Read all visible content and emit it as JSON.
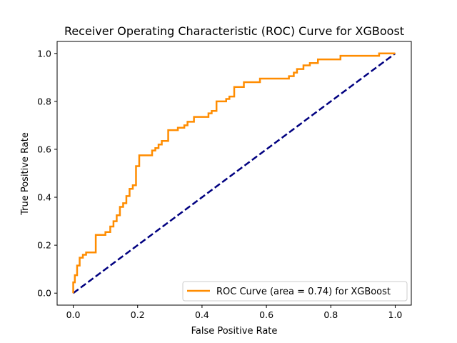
{
  "chart_data": {
    "type": "line",
    "title": "Receiver Operating Characteristic (ROC) Curve for XGBoost",
    "xlabel": "False Positive Rate",
    "ylabel": "True Positive Rate",
    "xlim": [
      -0.05,
      1.05
    ],
    "ylim": [
      -0.05,
      1.05
    ],
    "x_ticks": [
      0.0,
      0.2,
      0.4,
      0.6,
      0.8,
      1.0
    ],
    "y_ticks": [
      0.0,
      0.2,
      0.4,
      0.6,
      0.8,
      1.0
    ],
    "x_tick_labels": [
      "0.0",
      "0.2",
      "0.4",
      "0.6",
      "0.8",
      "1.0"
    ],
    "y_tick_labels": [
      "0.0",
      "0.2",
      "0.4",
      "0.6",
      "0.8",
      "1.0"
    ],
    "grid": false,
    "legend_position": "lower right",
    "series": [
      {
        "name": "ROC Curve (area = 0.74) for XGBoost",
        "color": "#ff8c00",
        "style": "solid",
        "x": [
          0.0,
          0.0,
          0.005,
          0.005,
          0.012,
          0.012,
          0.02,
          0.02,
          0.03,
          0.03,
          0.04,
          0.04,
          0.07,
          0.07,
          0.1,
          0.1,
          0.115,
          0.115,
          0.125,
          0.125,
          0.135,
          0.135,
          0.145,
          0.145,
          0.155,
          0.155,
          0.165,
          0.165,
          0.175,
          0.175,
          0.185,
          0.185,
          0.195,
          0.195,
          0.205,
          0.205,
          0.245,
          0.245,
          0.255,
          0.255,
          0.265,
          0.265,
          0.275,
          0.275,
          0.295,
          0.295,
          0.325,
          0.325,
          0.345,
          0.345,
          0.355,
          0.355,
          0.375,
          0.375,
          0.42,
          0.42,
          0.43,
          0.43,
          0.445,
          0.445,
          0.475,
          0.475,
          0.485,
          0.485,
          0.5,
          0.5,
          0.53,
          0.53,
          0.58,
          0.58,
          0.67,
          0.67,
          0.685,
          0.685,
          0.695,
          0.695,
          0.715,
          0.715,
          0.735,
          0.735,
          0.76,
          0.76,
          0.83,
          0.83,
          0.95,
          0.95,
          1.0
        ],
        "y": [
          0.0,
          0.045,
          0.045,
          0.075,
          0.075,
          0.115,
          0.115,
          0.148,
          0.148,
          0.16,
          0.16,
          0.17,
          0.17,
          0.243,
          0.243,
          0.255,
          0.255,
          0.278,
          0.278,
          0.3,
          0.3,
          0.325,
          0.325,
          0.36,
          0.36,
          0.375,
          0.375,
          0.405,
          0.405,
          0.435,
          0.435,
          0.45,
          0.45,
          0.53,
          0.53,
          0.575,
          0.575,
          0.595,
          0.595,
          0.605,
          0.605,
          0.62,
          0.62,
          0.635,
          0.635,
          0.68,
          0.68,
          0.69,
          0.69,
          0.7,
          0.7,
          0.715,
          0.715,
          0.735,
          0.735,
          0.75,
          0.75,
          0.76,
          0.76,
          0.8,
          0.8,
          0.81,
          0.81,
          0.82,
          0.82,
          0.86,
          0.86,
          0.88,
          0.88,
          0.895,
          0.895,
          0.905,
          0.905,
          0.92,
          0.92,
          0.935,
          0.935,
          0.95,
          0.95,
          0.96,
          0.96,
          0.975,
          0.975,
          0.99,
          0.99,
          1.0,
          1.0
        ]
      },
      {
        "name": "",
        "color": "#000080",
        "style": "dashed",
        "x": [
          0.0,
          1.0
        ],
        "y": [
          0.0,
          1.0
        ]
      }
    ]
  }
}
